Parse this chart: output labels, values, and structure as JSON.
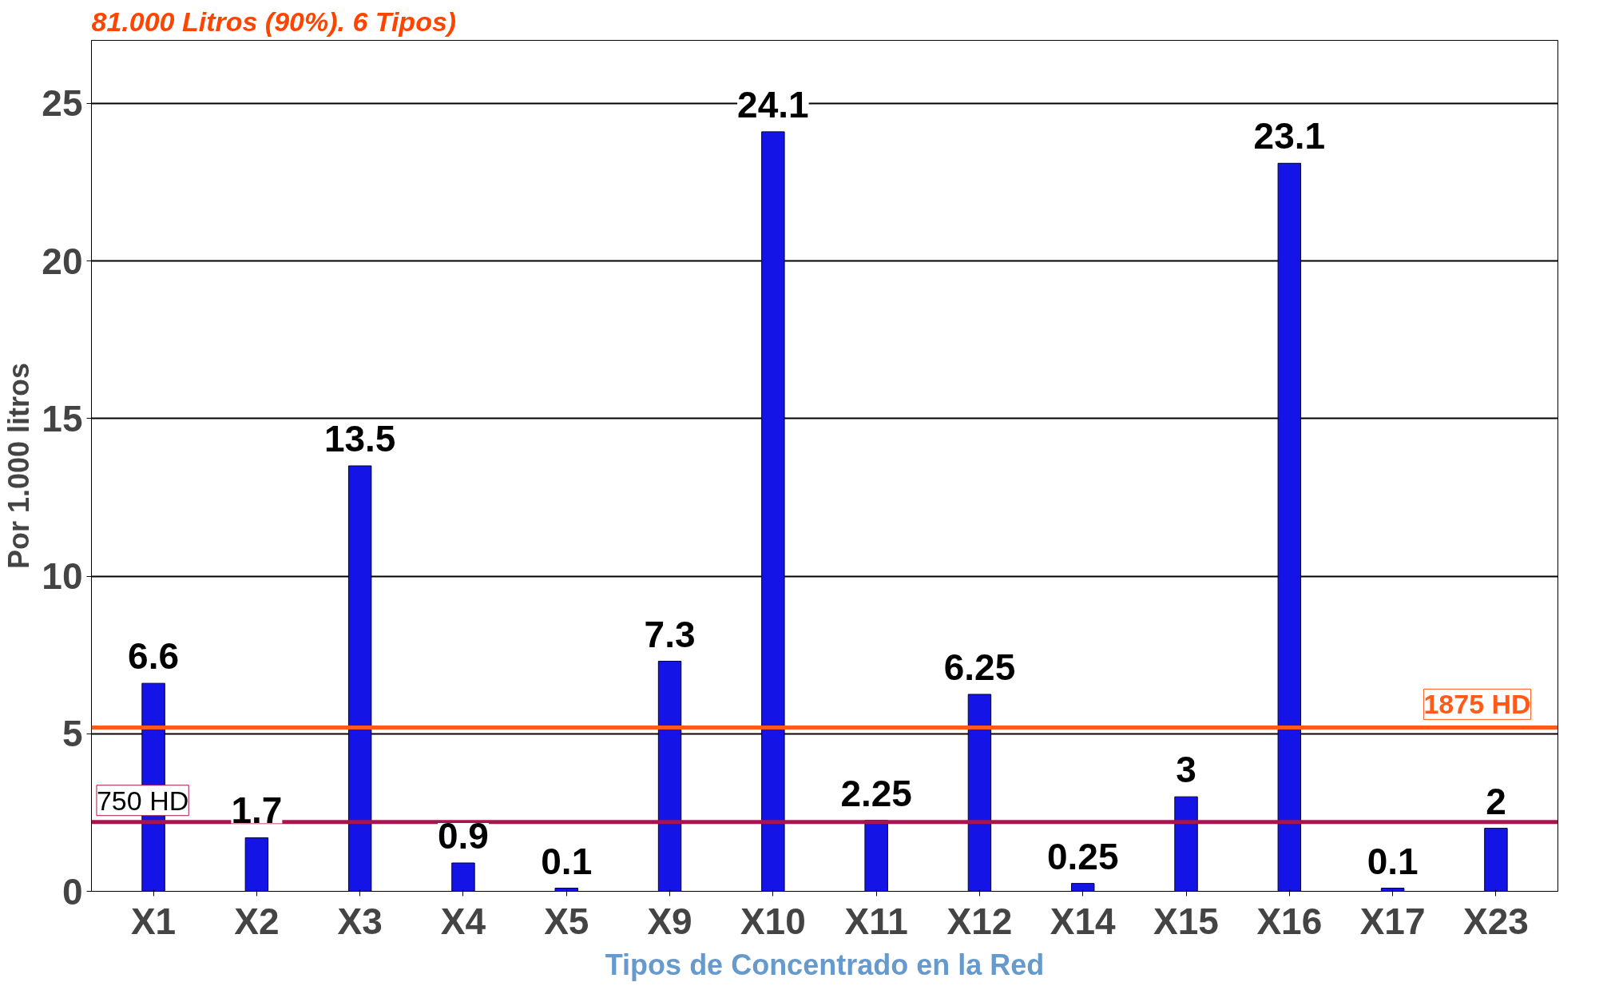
{
  "chart_data": {
    "type": "bar",
    "title": "81.000 Litros (90%). 6 Tipos)",
    "xlabel": "Tipos de Concentrado en la Red",
    "ylabel": "Por 1.000 litros",
    "categories": [
      "X1",
      "X2",
      "X3",
      "X4",
      "X5",
      "X9",
      "X10",
      "X11",
      "X12",
      "X14",
      "X15",
      "X16",
      "X17",
      "X23"
    ],
    "values": [
      6.6,
      1.7,
      13.5,
      0.9,
      0.1,
      7.3,
      24.1,
      2.25,
      6.25,
      0.25,
      3,
      23.1,
      0.1,
      2
    ],
    "color": "#1414e6",
    "data_labels": true,
    "ylim": [
      0,
      27
    ],
    "yticks": [
      0,
      5,
      10,
      15,
      20,
      25
    ],
    "grid": "y",
    "ref_lines": [
      {
        "axis": "y",
        "value": 5.2,
        "label": "1875 HD",
        "color": "#ff5a1a"
      },
      {
        "axis": "y",
        "value": 2.2,
        "label": "750 HD",
        "color": "#a3164f"
      }
    ]
  }
}
